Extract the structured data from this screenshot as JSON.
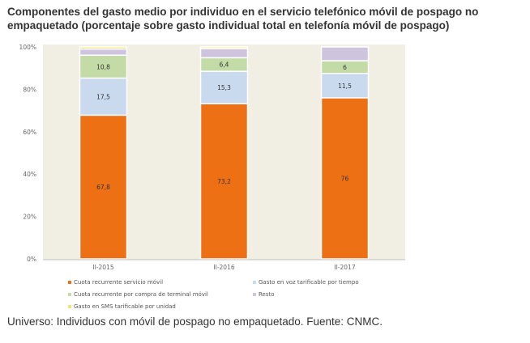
{
  "chart_data": {
    "type": "bar",
    "stacked": true,
    "title": "Componentes del gasto medio por individuo en el servicio telefónico móvil de pospago no empaquetado (porcentaje sobre gasto individual total en telefonía móvil de pospago)",
    "xlabel": "",
    "ylabel": "",
    "categories": [
      "II-2015",
      "II-2016",
      "II-2017"
    ],
    "yticks": [
      "0%",
      "20%",
      "40%",
      "60%",
      "80%",
      "100%"
    ],
    "ylim": [
      0,
      100
    ],
    "grid": false,
    "legend_position": "bottom",
    "series": [
      {
        "name": "Cuota recurrente servicio móvil",
        "color": "#ED7014",
        "values": [
          67.8,
          73.2,
          76
        ],
        "labels": [
          "67,8",
          "73,2",
          "76"
        ]
      },
      {
        "name": "Gasto en voz tarificable por tiempo",
        "color": "#C9D9EE",
        "values": [
          17.5,
          15.3,
          11.5
        ],
        "labels": [
          "17,5",
          "15,3",
          "11,5"
        ]
      },
      {
        "name": "Cuota recurrente por compra de terminal móvil",
        "color": "#C3DBA6",
        "values": [
          10.8,
          6.4,
          6
        ],
        "labels": [
          "10,8",
          "6,4",
          "6"
        ]
      },
      {
        "name": "Resto",
        "color": "#CEC4DE",
        "values": [
          2.9,
          4.3,
          6.5
        ],
        "labels": [
          "",
          "",
          ""
        ]
      },
      {
        "name": "Gasto en SMS tarificable por unidad",
        "color": "#F2E270",
        "values": [
          1.0,
          0.8,
          0.0
        ],
        "labels": [
          "",
          "",
          ""
        ]
      }
    ]
  },
  "caption": "Universo: Individuos con móvil de pospago no empaquetado. Fuente: CNMC."
}
